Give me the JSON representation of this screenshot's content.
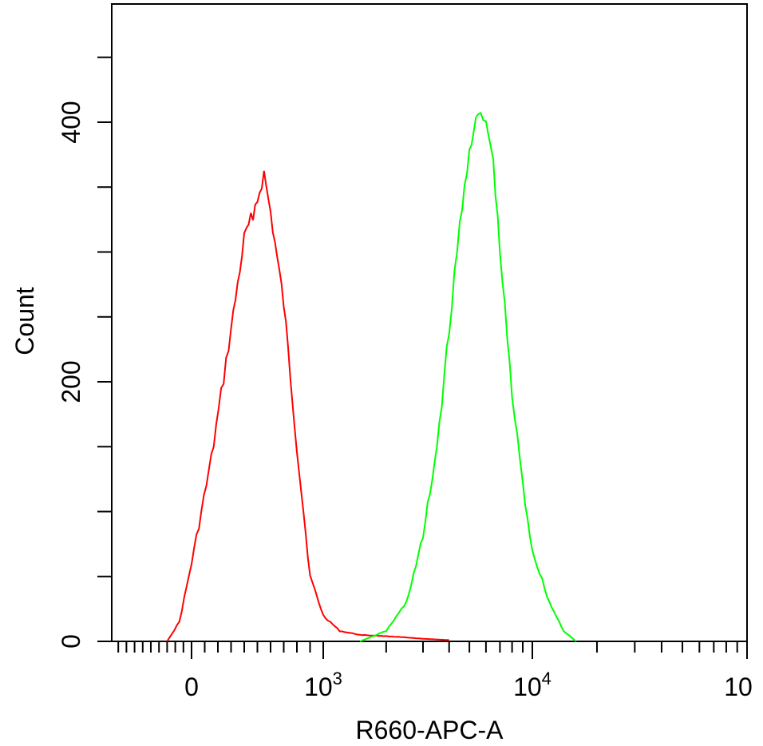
{
  "chart_data": {
    "type": "histogram",
    "xlabel": "R660-APC-A",
    "ylabel": "Count",
    "x_scale": "biexponential",
    "ylim": [
      0,
      500
    ],
    "y_ticks": [
      {
        "value": 0,
        "label": "0"
      },
      {
        "value": 200,
        "label": "200"
      },
      {
        "value": 400,
        "label": "400"
      }
    ],
    "x_ticks": [
      {
        "value": 0,
        "label": "0"
      },
      {
        "value": 1000,
        "label": "10",
        "sup": "3"
      },
      {
        "value": 10000,
        "label": "10",
        "sup": "4"
      },
      {
        "value": 100000,
        "label": "10",
        "sup": ""
      }
    ],
    "series": [
      {
        "color": "#ff0000",
        "x": [
          -300,
          -150,
          0,
          150,
          300,
          400,
          500,
          550,
          600,
          700,
          800,
          900,
          1000,
          1200,
          1500,
          2000,
          2500,
          3000,
          4000
        ],
        "y": [
          0,
          15,
          60,
          140,
          240,
          310,
          340,
          360,
          330,
          260,
          150,
          50,
          20,
          8,
          5,
          4,
          3,
          2,
          1
        ]
      },
      {
        "color": "#00ff00",
        "x": [
          1500,
          2000,
          2500,
          3000,
          3500,
          4000,
          4500,
          5000,
          5500,
          6000,
          6500,
          7000,
          8000,
          9000,
          10000,
          12000,
          14000,
          16000
        ],
        "y": [
          0,
          8,
          30,
          80,
          150,
          240,
          320,
          380,
          405,
          400,
          370,
          300,
          190,
          120,
          70,
          30,
          8,
          0
        ]
      }
    ]
  }
}
